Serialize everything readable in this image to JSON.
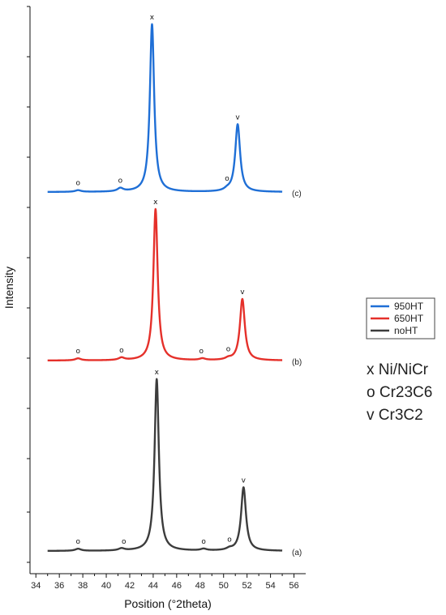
{
  "chart_data": {
    "type": "line",
    "title": "",
    "xlabel": "Position (°2theta)",
    "ylabel": "Intensity",
    "xlim": [
      33.5,
      57
    ],
    "x_ticks": [
      "34",
      "36",
      "38",
      "40",
      "42",
      "44",
      "46",
      "48",
      "50",
      "52",
      "54",
      "56"
    ],
    "grid": false,
    "legend": {
      "placement": "right",
      "entries": [
        {
          "name": "950HT",
          "color": "#1f6fd6"
        },
        {
          "name": "650HT",
          "color": "#e5302a"
        },
        {
          "name": "noHT",
          "color": "#3c3c3c"
        }
      ]
    },
    "phase_key": [
      "x Ni/NiCr",
      "o Cr23C6",
      "v Cr3C2"
    ],
    "series": [
      {
        "name": "950HT",
        "panel_label": "(c)",
        "color": "#1f6fd6",
        "x_range": [
          35,
          55
        ],
        "peaks": [
          {
            "x": 37.6,
            "height": 0.4,
            "width": 0.3
          },
          {
            "x": 41.2,
            "height": 0.8,
            "width": 0.3
          },
          {
            "x": 43.9,
            "height": 41,
            "width": 0.22
          },
          {
            "x": 50.3,
            "height": 0.4,
            "width": 0.3
          },
          {
            "x": 51.2,
            "height": 16.5,
            "width": 0.25
          }
        ],
        "markers": [
          {
            "symbol": "o",
            "x": 37.6
          },
          {
            "symbol": "o",
            "x": 41.2
          },
          {
            "symbol": "x",
            "x": 43.9
          },
          {
            "symbol": "o",
            "x": 50.3
          },
          {
            "symbol": "v",
            "x": 51.2
          }
        ]
      },
      {
        "name": "650HT",
        "panel_label": "(b)",
        "color": "#e5302a",
        "x_range": [
          35,
          55
        ],
        "peaks": [
          {
            "x": 37.6,
            "height": 0.5,
            "width": 0.3
          },
          {
            "x": 41.3,
            "height": 0.6,
            "width": 0.3
          },
          {
            "x": 44.2,
            "height": 37,
            "width": 0.22
          },
          {
            "x": 48.2,
            "height": 0.4,
            "width": 0.3
          },
          {
            "x": 50.4,
            "height": 0.4,
            "width": 0.3
          },
          {
            "x": 51.6,
            "height": 15,
            "width": 0.25
          }
        ],
        "markers": [
          {
            "symbol": "o",
            "x": 37.6
          },
          {
            "symbol": "o",
            "x": 41.3
          },
          {
            "symbol": "x",
            "x": 44.2
          },
          {
            "symbol": "o",
            "x": 48.1
          },
          {
            "symbol": "o",
            "x": 50.4
          },
          {
            "symbol": "v",
            "x": 51.6
          }
        ]
      },
      {
        "name": "noHT",
        "panel_label": "(a)",
        "color": "#3c3c3c",
        "x_range": [
          35,
          55
        ],
        "peaks": [
          {
            "x": 37.6,
            "height": 0.5,
            "width": 0.3
          },
          {
            "x": 41.3,
            "height": 0.5,
            "width": 0.3
          },
          {
            "x": 44.3,
            "height": 42,
            "width": 0.22
          },
          {
            "x": 48.3,
            "height": 0.4,
            "width": 0.3
          },
          {
            "x": 50.5,
            "height": 0.4,
            "width": 0.3
          },
          {
            "x": 51.7,
            "height": 15.5,
            "width": 0.25
          }
        ],
        "markers": [
          {
            "symbol": "o",
            "x": 37.6
          },
          {
            "symbol": "o",
            "x": 41.5
          },
          {
            "symbol": "x",
            "x": 44.3
          },
          {
            "symbol": "o",
            "x": 48.3
          },
          {
            "symbol": "o",
            "x": 50.5
          },
          {
            "symbol": "v",
            "x": 51.7
          }
        ]
      }
    ]
  }
}
